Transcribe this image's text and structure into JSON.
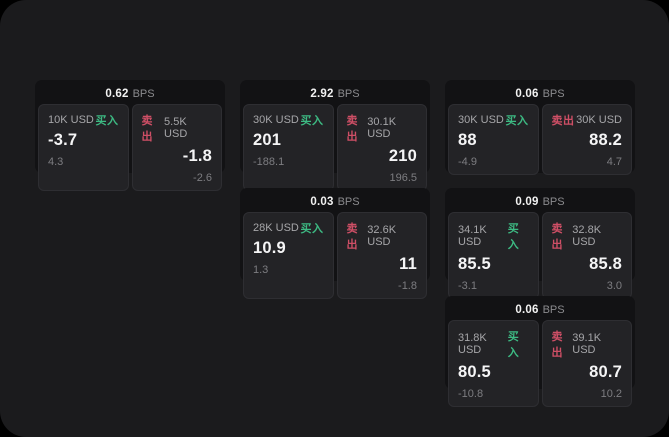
{
  "labels": {
    "buy": "买入",
    "sell": "卖出",
    "bps_unit": "BPS"
  },
  "colors": {
    "buy_green": "#3dba83",
    "sell_red": "#cf4f66",
    "window_background": "#1b1b1d",
    "tile_background": "#121214",
    "panel_background": "#232326"
  },
  "tiles": [
    {
      "bps": "0.62",
      "buy": {
        "size": "10K USD",
        "price": "-3.7",
        "change": "4.3"
      },
      "sell": {
        "size": "5.5K USD",
        "price": "-1.8",
        "change": "-2.6"
      }
    },
    {
      "bps": "2.92",
      "buy": {
        "size": "30K USD",
        "price": "201",
        "change": "-188.1"
      },
      "sell": {
        "size": "30.1K USD",
        "price": "210",
        "change": "196.5"
      }
    },
    {
      "bps": "0.06",
      "buy": {
        "size": "30K USD",
        "price": "88",
        "change": "-4.9"
      },
      "sell": {
        "size": "30K USD",
        "price": "88.2",
        "change": "4.7"
      }
    },
    {
      "bps": "0.03",
      "buy": {
        "size": "28K USD",
        "price": "10.9",
        "change": "1.3"
      },
      "sell": {
        "size": "32.6K USD",
        "price": "11",
        "change": "-1.8"
      }
    },
    {
      "bps": "0.09",
      "buy": {
        "size": "34.1K USD",
        "price": "85.5",
        "change": "-3.1"
      },
      "sell": {
        "size": "32.8K USD",
        "price": "85.8",
        "change": "3.0"
      }
    },
    {
      "bps": "0.06",
      "buy": {
        "size": "31.8K USD",
        "price": "80.5",
        "change": "-10.8"
      },
      "sell": {
        "size": "39.1K USD",
        "price": "80.7",
        "change": "10.2"
      }
    }
  ]
}
